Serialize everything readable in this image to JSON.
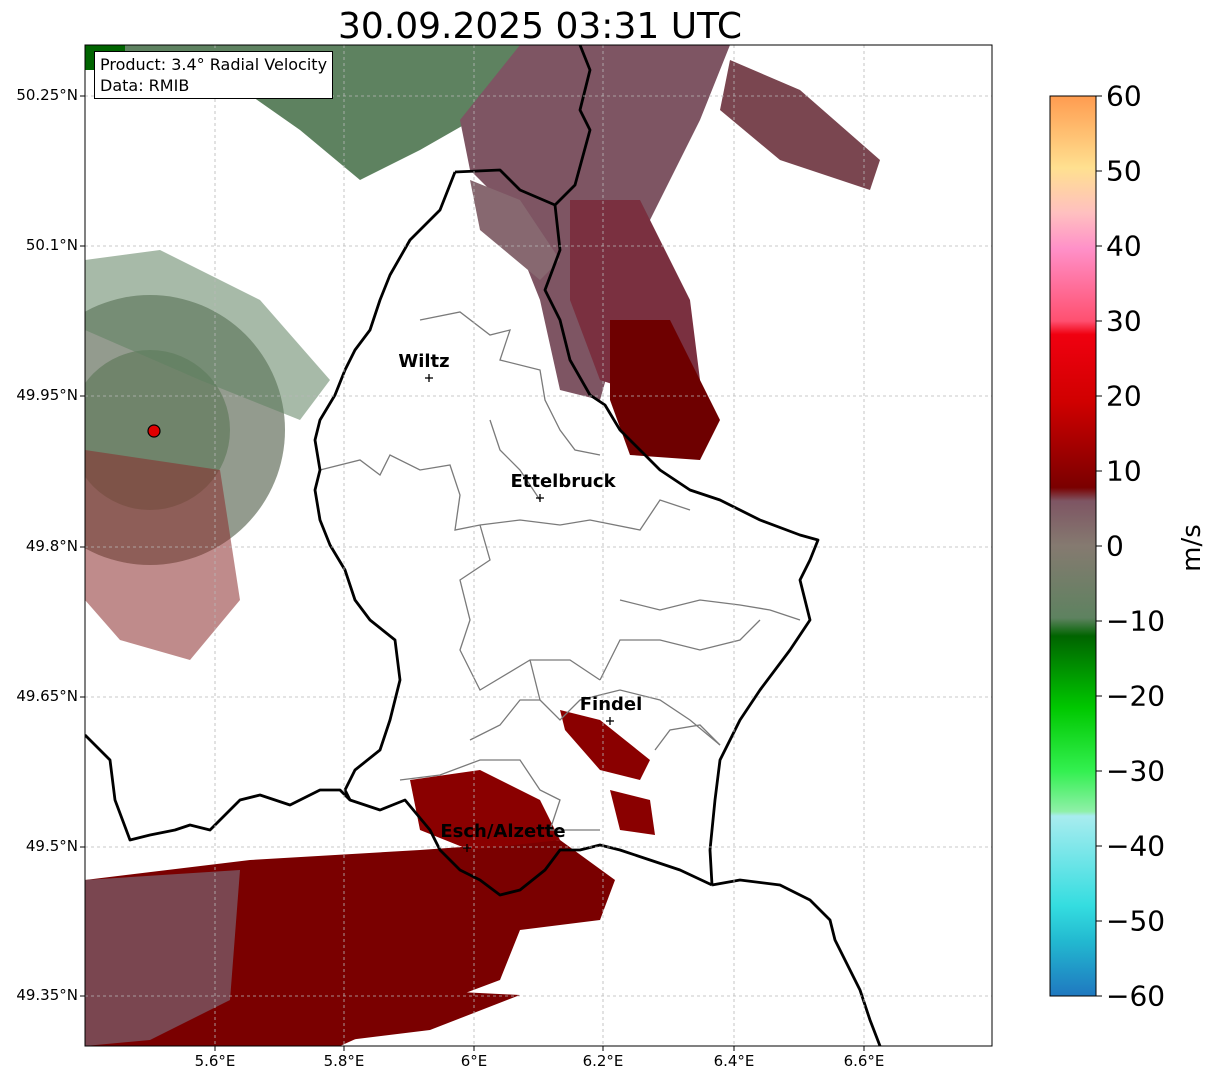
{
  "title": "30.09.2025 03:31 UTC",
  "info_box": {
    "product": "Product: 3.4° Radial Velocity",
    "data": "Data: RMIB"
  },
  "axes": {
    "lat_ticks": [
      "50.25°N",
      "50.1°N",
      "49.95°N",
      "49.8°N",
      "49.65°N",
      "49.5°N",
      "49.35°N"
    ],
    "lon_ticks": [
      "5.6°E",
      "5.8°E",
      "6°E",
      "6.2°E",
      "6.4°E",
      "6.6°E"
    ]
  },
  "cities": [
    {
      "name": "Wiltz"
    },
    {
      "name": "Ettelbruck"
    },
    {
      "name": "Findel"
    },
    {
      "name": "Esch/Alzette"
    }
  ],
  "colorbar": {
    "unit": "m/s",
    "ticks": [
      "60",
      "50",
      "40",
      "30",
      "20",
      "10",
      "0",
      "−10",
      "−20",
      "−30",
      "−40",
      "−50",
      "−60"
    ],
    "range": [
      -60,
      60
    ]
  },
  "colors": {
    "positive_dark": "#7a0000",
    "positive_red": "#e00000",
    "neutral_mauve": "#7e5563",
    "neutral_green": "#5e8260",
    "negative_green": "#00a000",
    "radar_site": "#e00000"
  }
}
